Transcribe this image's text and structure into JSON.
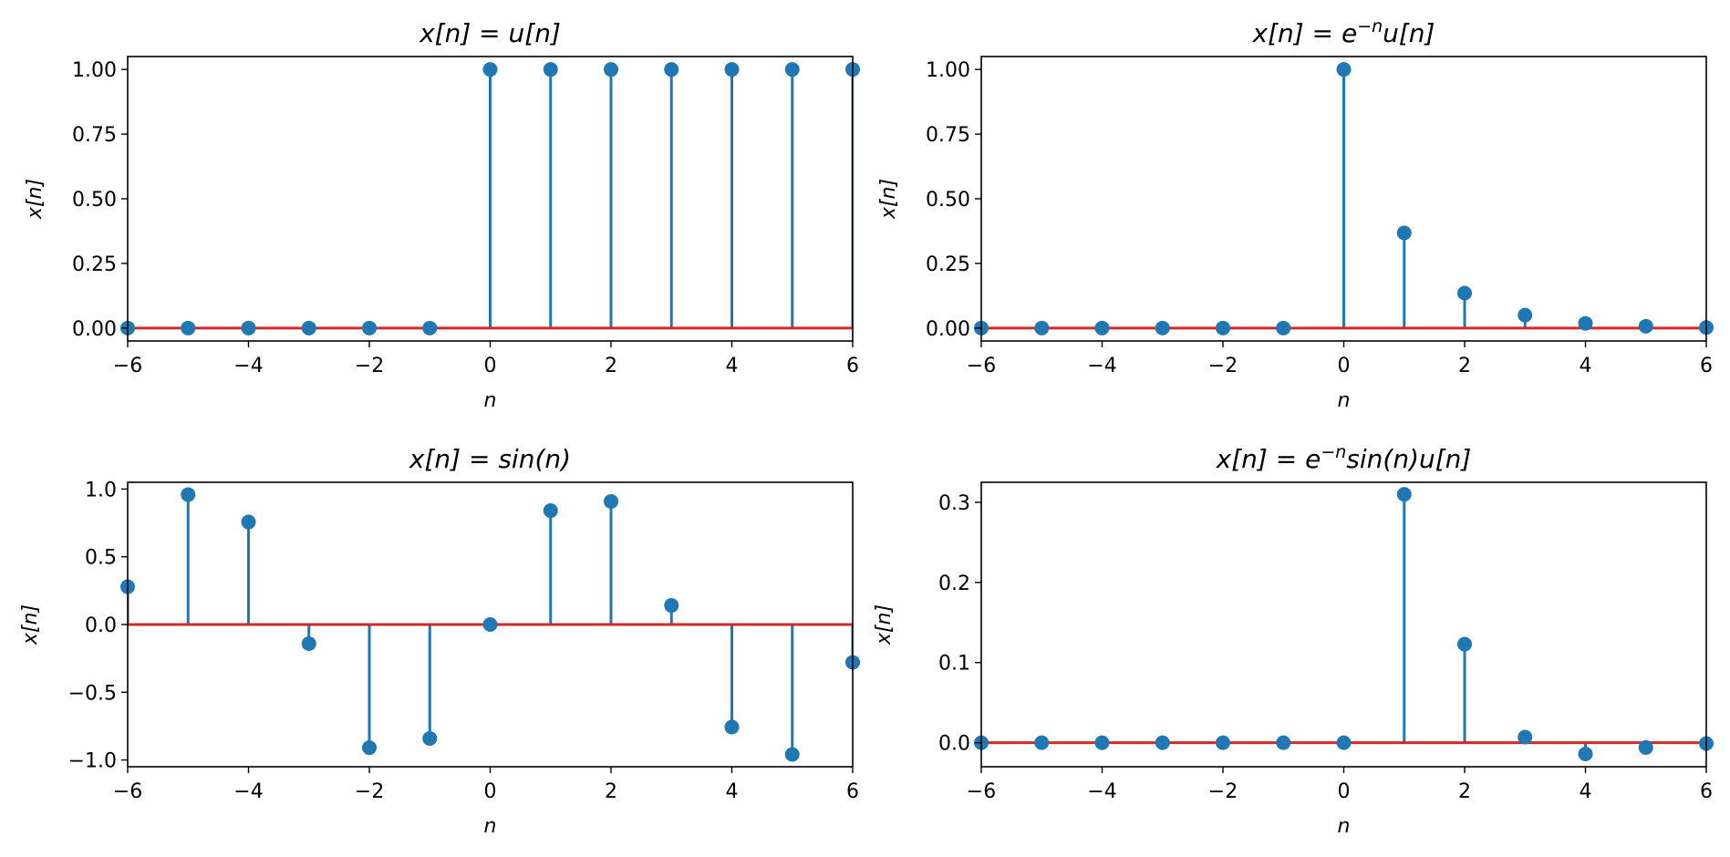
{
  "colors": {
    "stem": "#1f77b4",
    "baseline": "#d62728",
    "frame": "#000000",
    "background": "#ffffff"
  },
  "chart_data": [
    {
      "type": "stem",
      "title": "x[n] = u[n]",
      "xlabel": "n",
      "ylabel": "x[n]",
      "xlim": [
        -6,
        6
      ],
      "ylim": [
        -0.05,
        1.05
      ],
      "xticks": [
        -6,
        -4,
        -2,
        0,
        2,
        4,
        6
      ],
      "xtick_labels": [
        "−6",
        "−4",
        "−2",
        "0",
        "2",
        "4",
        "6"
      ],
      "yticks": [
        0.0,
        0.25,
        0.5,
        0.75,
        1.0
      ],
      "ytick_labels": [
        "0.00",
        "0.25",
        "0.50",
        "0.75",
        "1.00"
      ],
      "x": [
        -6,
        -5,
        -4,
        -3,
        -2,
        -1,
        0,
        1,
        2,
        3,
        4,
        5,
        6
      ],
      "values": [
        0,
        0,
        0,
        0,
        0,
        0,
        1,
        1,
        1,
        1,
        1,
        1,
        1
      ],
      "baseline": 0,
      "grid": false
    },
    {
      "type": "stem",
      "title": "x[n] = e^{−n}u[n]",
      "xlabel": "n",
      "ylabel": "x[n]",
      "xlim": [
        -6,
        6
      ],
      "ylim": [
        -0.05,
        1.05
      ],
      "xticks": [
        -6,
        -4,
        -2,
        0,
        2,
        4,
        6
      ],
      "xtick_labels": [
        "−6",
        "−4",
        "−2",
        "0",
        "2",
        "4",
        "6"
      ],
      "yticks": [
        0.0,
        0.25,
        0.5,
        0.75,
        1.0
      ],
      "ytick_labels": [
        "0.00",
        "0.25",
        "0.50",
        "0.75",
        "1.00"
      ],
      "x": [
        -6,
        -5,
        -4,
        -3,
        -2,
        -1,
        0,
        1,
        2,
        3,
        4,
        5,
        6
      ],
      "values": [
        0,
        0,
        0,
        0,
        0,
        0,
        1.0,
        0.368,
        0.135,
        0.05,
        0.018,
        0.007,
        0.002
      ],
      "baseline": 0,
      "grid": false
    },
    {
      "type": "stem",
      "title": "x[n] = sin(n)",
      "xlabel": "n",
      "ylabel": "x[n]",
      "xlim": [
        -6,
        6
      ],
      "ylim": [
        -1.05,
        1.05
      ],
      "xticks": [
        -6,
        -4,
        -2,
        0,
        2,
        4,
        6
      ],
      "xtick_labels": [
        "−6",
        "−4",
        "−2",
        "0",
        "2",
        "4",
        "6"
      ],
      "yticks": [
        -1.0,
        -0.5,
        0.0,
        0.5,
        1.0
      ],
      "ytick_labels": [
        "−1.0",
        "−0.5",
        "0.0",
        "0.5",
        "1.0"
      ],
      "x": [
        -6,
        -5,
        -4,
        -3,
        -2,
        -1,
        0,
        1,
        2,
        3,
        4,
        5,
        6
      ],
      "values": [
        0.279,
        0.959,
        0.757,
        -0.141,
        -0.909,
        -0.841,
        0.0,
        0.841,
        0.909,
        0.141,
        -0.757,
        -0.959,
        -0.279
      ],
      "baseline": 0,
      "grid": false
    },
    {
      "type": "stem",
      "title": "x[n] = e^{−n}sin(n)u[n]",
      "xlabel": "n",
      "ylabel": "x[n]",
      "xlim": [
        -6,
        6
      ],
      "ylim": [
        -0.03,
        0.325
      ],
      "xticks": [
        -6,
        -4,
        -2,
        0,
        2,
        4,
        6
      ],
      "xtick_labels": [
        "−6",
        "−4",
        "−2",
        "0",
        "2",
        "4",
        "6"
      ],
      "yticks": [
        0.0,
        0.1,
        0.2,
        0.3
      ],
      "ytick_labels": [
        "0.0",
        "0.1",
        "0.2",
        "0.3"
      ],
      "x": [
        -6,
        -5,
        -4,
        -3,
        -2,
        -1,
        0,
        1,
        2,
        3,
        4,
        5,
        6
      ],
      "values": [
        0,
        0,
        0,
        0,
        0,
        0,
        0.0,
        0.31,
        0.123,
        0.007,
        -0.014,
        -0.006,
        -0.001
      ],
      "baseline": 0,
      "grid": false
    }
  ]
}
